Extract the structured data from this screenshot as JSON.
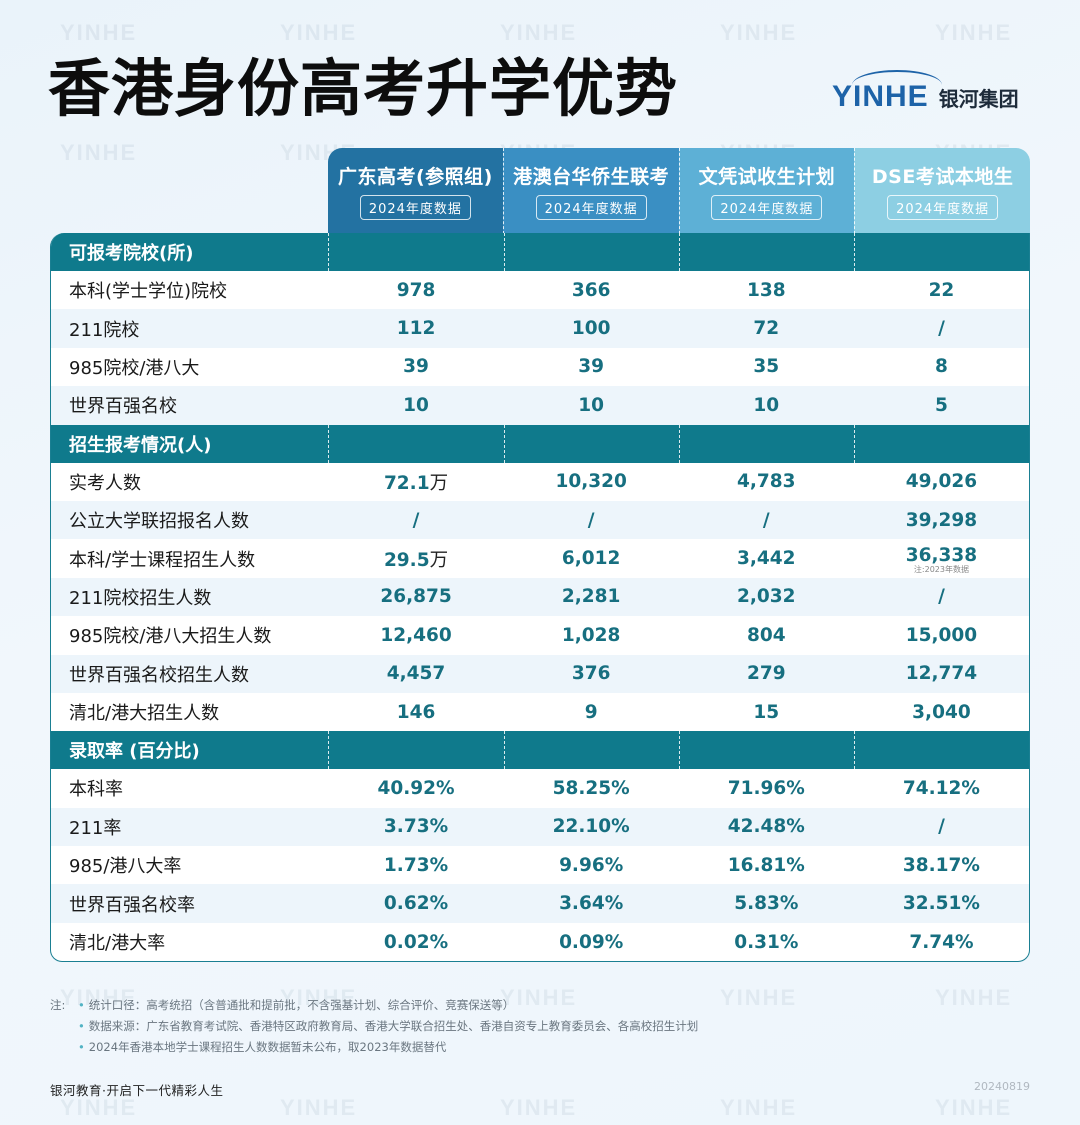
{
  "title": "香港身份高考升学优势",
  "brand": {
    "logo_text": "YINHE",
    "name_cn": "银河集团",
    "color": "#1d63a8"
  },
  "watermark_text": "YINHE",
  "columns": [
    {
      "title": "广东高考(参照组)",
      "badge": "2024年度数据",
      "color": "#2372a2"
    },
    {
      "title": "港澳台华侨生联考",
      "badge": "2024年度数据",
      "color": "#3a8fc3"
    },
    {
      "title": "文凭试收生计划",
      "badge": "2024年度数据",
      "color": "#5db0d6"
    },
    {
      "title": "DSE考试本地生",
      "badge": "2024年度数据",
      "color": "#8dcfe3"
    }
  ],
  "colors": {
    "section_bg": "#0f7a8c",
    "value_text": "#176f80",
    "row_alt_bg": "#edf5fb",
    "border": "#1a7f92"
  },
  "sections": [
    {
      "title": "可报考院校(所)",
      "rows": [
        {
          "label": "本科(学士学位)院校",
          "values": [
            "978",
            "366",
            "138",
            "22"
          ]
        },
        {
          "label": "211院校",
          "values": [
            "112",
            "100",
            "72",
            "/"
          ]
        },
        {
          "label": "985院校/港八大",
          "values": [
            "39",
            "39",
            "35",
            "8"
          ]
        },
        {
          "label": "世界百强名校",
          "values": [
            "10",
            "10",
            "10",
            "5"
          ]
        }
      ]
    },
    {
      "title": "招生报考情况(人)",
      "rows": [
        {
          "label": "实考人数",
          "values": [
            "72.1",
            "10,320",
            "4,783",
            "49,026"
          ],
          "units": [
            "万",
            "",
            "",
            ""
          ]
        },
        {
          "label": "公立大学联招报名人数",
          "values": [
            "/",
            "/",
            "/",
            "39,298"
          ]
        },
        {
          "label": "本科/学士课程招生人数",
          "values": [
            "29.5",
            "6,012",
            "3,442",
            "36,338"
          ],
          "units": [
            "万",
            "",
            "",
            ""
          ],
          "notes": [
            "",
            "",
            "",
            "注:2023年数据"
          ]
        },
        {
          "label": "211院校招生人数",
          "values": [
            "26,875",
            "2,281",
            "2,032",
            "/"
          ]
        },
        {
          "label": "985院校/港八大招生人数",
          "values": [
            "12,460",
            "1,028",
            "804",
            "15,000"
          ]
        },
        {
          "label": "世界百强名校招生人数",
          "values": [
            "4,457",
            "376",
            "279",
            "12,774"
          ]
        },
        {
          "label": "清北/港大招生人数",
          "values": [
            "146",
            "9",
            "15",
            "3,040"
          ]
        }
      ]
    },
    {
      "title": "录取率 (百分比)",
      "rows": [
        {
          "label": "本科率",
          "values": [
            "40.92%",
            "58.25%",
            "71.96%",
            "74.12%"
          ]
        },
        {
          "label": "211率",
          "values": [
            "3.73%",
            "22.10%",
            "42.48%",
            "/"
          ]
        },
        {
          "label": "985/港八大率",
          "values": [
            "1.73%",
            "9.96%",
            "16.81%",
            "38.17%"
          ]
        },
        {
          "label": "世界百强名校率",
          "values": [
            "0.62%",
            "3.64%",
            "5.83%",
            "32.51%"
          ]
        },
        {
          "label": "清北/港大率",
          "values": [
            "0.02%",
            "0.09%",
            "0.31%",
            "7.74%"
          ]
        }
      ]
    }
  ],
  "notes": {
    "prefix": "注:",
    "items": [
      "统计口径：高考统招（含普通批和提前批，不含强基计划、综合评价、竞赛保送等）",
      "数据来源：广东省教育考试院、香港特区政府教育局、香港大学联合招生处、香港自资专上教育委员会、各高校招生计划",
      "2024年香港本地学士课程招生人数数据暂未公布，取2023年数据替代"
    ]
  },
  "footer": {
    "slogan": "银河教育·开启下一代精彩人生",
    "date": "20240819"
  }
}
